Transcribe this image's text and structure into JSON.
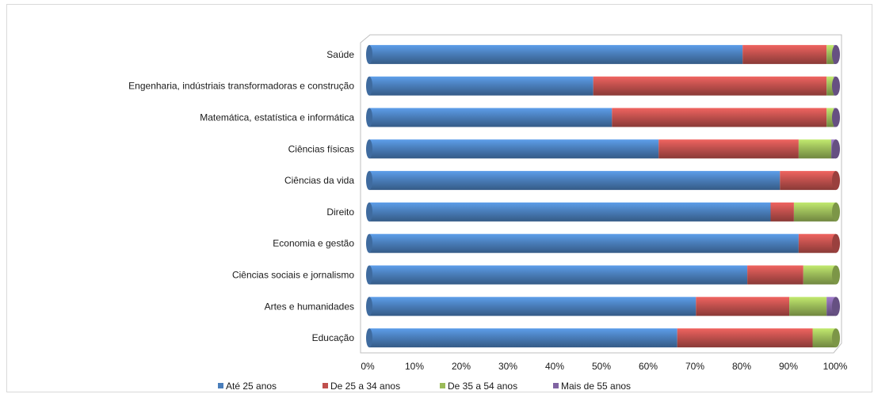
{
  "chart_data": {
    "type": "bar",
    "orientation": "horizontal",
    "stacked": "percent",
    "title": "",
    "xlabel": "",
    "ylabel": "",
    "xlim": [
      0,
      100
    ],
    "ticks": [
      "0%",
      "10%",
      "20%",
      "30%",
      "40%",
      "50%",
      "60%",
      "70%",
      "80%",
      "90%",
      "100%"
    ],
    "grid": false,
    "legend_position": "bottom",
    "categories": [
      "Saúde",
      "Engenharia, indústriais transformadoras e construção",
      "Matemática, estatística e informática",
      "Ciências físicas",
      "Ciências da vida",
      "Direito",
      "Economia e gestão",
      "Ciências sociais e jornalismo",
      "Artes e humanidades",
      "Educação"
    ],
    "series": [
      {
        "name": "Até 25 anos",
        "color": "#4a7ebb",
        "values": [
          80,
          48,
          52,
          62,
          88,
          86,
          92,
          81,
          70,
          66
        ]
      },
      {
        "name": "De 25 a 34 anos",
        "color": "#c0504d",
        "values": [
          18,
          50,
          46,
          30,
          12,
          5,
          8,
          12,
          20,
          29
        ]
      },
      {
        "name": "De 35 a 54 anos",
        "color": "#9bbb59",
        "values": [
          1.5,
          1.5,
          1.5,
          7,
          0,
          9,
          0,
          7,
          8,
          5
        ]
      },
      {
        "name": "Mais de 55 anos",
        "color": "#8064a2",
        "values": [
          0.5,
          0.5,
          0.5,
          1,
          0,
          0,
          0,
          0,
          2,
          0
        ]
      }
    ]
  }
}
